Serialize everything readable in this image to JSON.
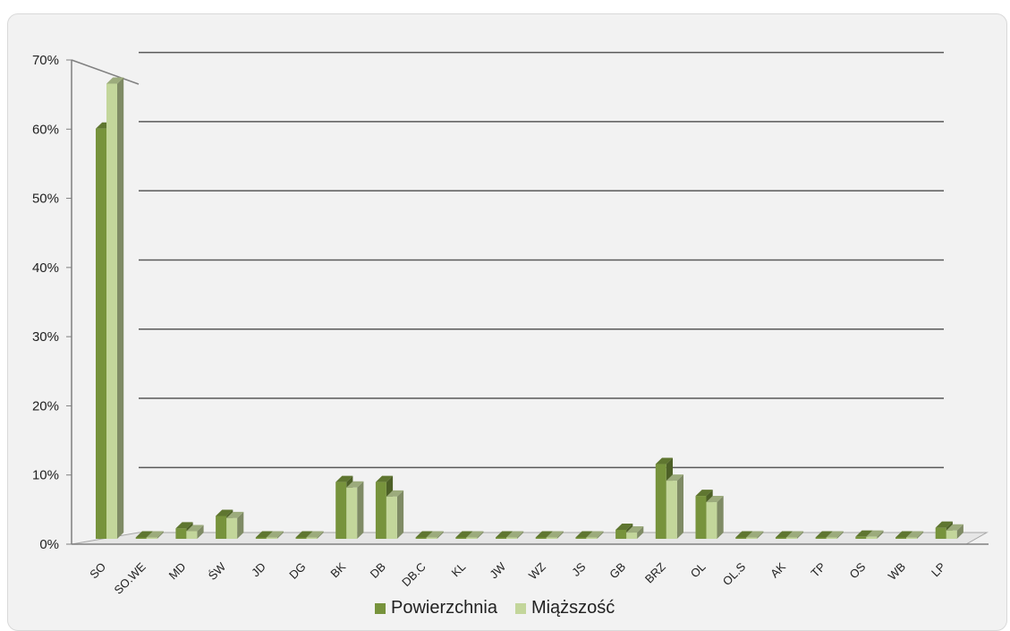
{
  "chart_data": {
    "type": "bar",
    "categories": [
      "SO",
      "SO.WE",
      "MD",
      "ŚW",
      "JD",
      "DG",
      "BK",
      "DB",
      "DB.C",
      "KL",
      "JW",
      "WZ",
      "JS",
      "GB",
      "BRZ",
      "OL",
      "OL.S",
      "AK",
      "TP",
      "OS",
      "WB",
      "LP"
    ],
    "series": [
      {
        "name": "Powierzchnia",
        "values": [
          59.3,
          0.1,
          1.5,
          3.3,
          0.1,
          0.1,
          8.2,
          8.2,
          0.2,
          0.2,
          0.2,
          0.2,
          0.2,
          1.3,
          10.8,
          6.2,
          0.1,
          0.2,
          0.2,
          0.3,
          0.1,
          1.6
        ],
        "color": "#77933c"
      },
      {
        "name": "Miąższość",
        "values": [
          65.8,
          0.1,
          1.1,
          3.0,
          0.1,
          0.1,
          7.4,
          6.1,
          0.2,
          0.2,
          0.2,
          0.2,
          0.2,
          0.9,
          8.4,
          5.3,
          0.1,
          0.2,
          0.2,
          0.3,
          0.1,
          1.2
        ],
        "color": "#c3d69b"
      }
    ],
    "yticks": [
      "0%",
      "10%",
      "20%",
      "30%",
      "40%",
      "50%",
      "60%",
      "70%"
    ],
    "ylim": [
      0,
      70
    ],
    "grid": true,
    "legend": "bottom"
  }
}
